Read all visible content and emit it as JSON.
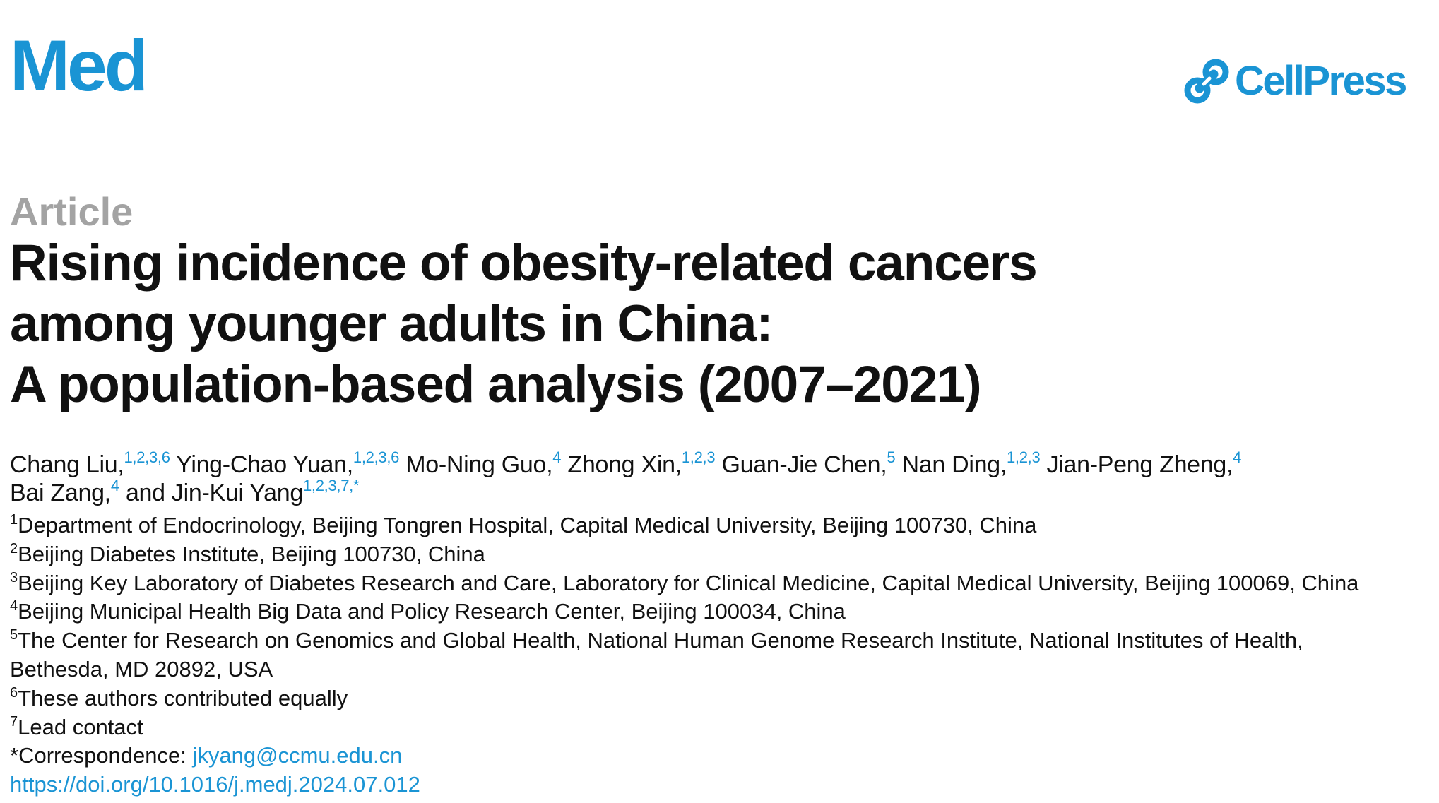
{
  "header": {
    "journal": "Med",
    "publisher": "CellPress",
    "brand_color": "#1a94d4"
  },
  "article_type": "Article",
  "title_lines": [
    "Rising incidence of obesity-related cancers",
    "among younger adults in China:",
    "A population-based analysis (2007–2021)"
  ],
  "authors": [
    {
      "name": "Chang Liu,",
      "sup": "1,2,3,6"
    },
    {
      "name": "Ying-Chao Yuan,",
      "sup": "1,2,3,6"
    },
    {
      "name": "Mo-Ning Guo,",
      "sup": "4"
    },
    {
      "name": "Zhong Xin,",
      "sup": "1,2,3"
    },
    {
      "name": "Guan-Jie Chen,",
      "sup": "5"
    },
    {
      "name": "Nan Ding,",
      "sup": "1,2,3"
    },
    {
      "name": "Jian-Peng Zheng,",
      "sup": "4"
    },
    {
      "name": "Bai Zang,",
      "sup": "4"
    },
    {
      "name": "and Jin-Kui Yang",
      "sup": "1,2,3,7,*"
    }
  ],
  "affiliations": [
    {
      "num": "1",
      "text": "Department of Endocrinology, Beijing Tongren Hospital, Capital Medical University, Beijing 100730, China"
    },
    {
      "num": "2",
      "text": "Beijing Diabetes Institute, Beijing 100730, China"
    },
    {
      "num": "3",
      "text": "Beijing Key Laboratory of Diabetes Research and Care, Laboratory for Clinical Medicine, Capital Medical University, Beijing 100069, China"
    },
    {
      "num": "4",
      "text": "Beijing Municipal Health Big Data and Policy Research Center, Beijing 100034, China"
    },
    {
      "num": "5",
      "text": "The Center for Research on Genomics and Global Health, National Human Genome Research Institute, National Institutes of Health,"
    },
    {
      "num": "",
      "text": "Bethesda, MD 20892, USA"
    },
    {
      "num": "6",
      "text": "These authors contributed equally"
    },
    {
      "num": "7",
      "text": "Lead contact"
    }
  ],
  "correspondence": {
    "label": "*Correspondence: ",
    "email": "jkyang@ccmu.edu.cn"
  },
  "doi": "https://doi.org/10.1016/j.medj.2024.07.012"
}
